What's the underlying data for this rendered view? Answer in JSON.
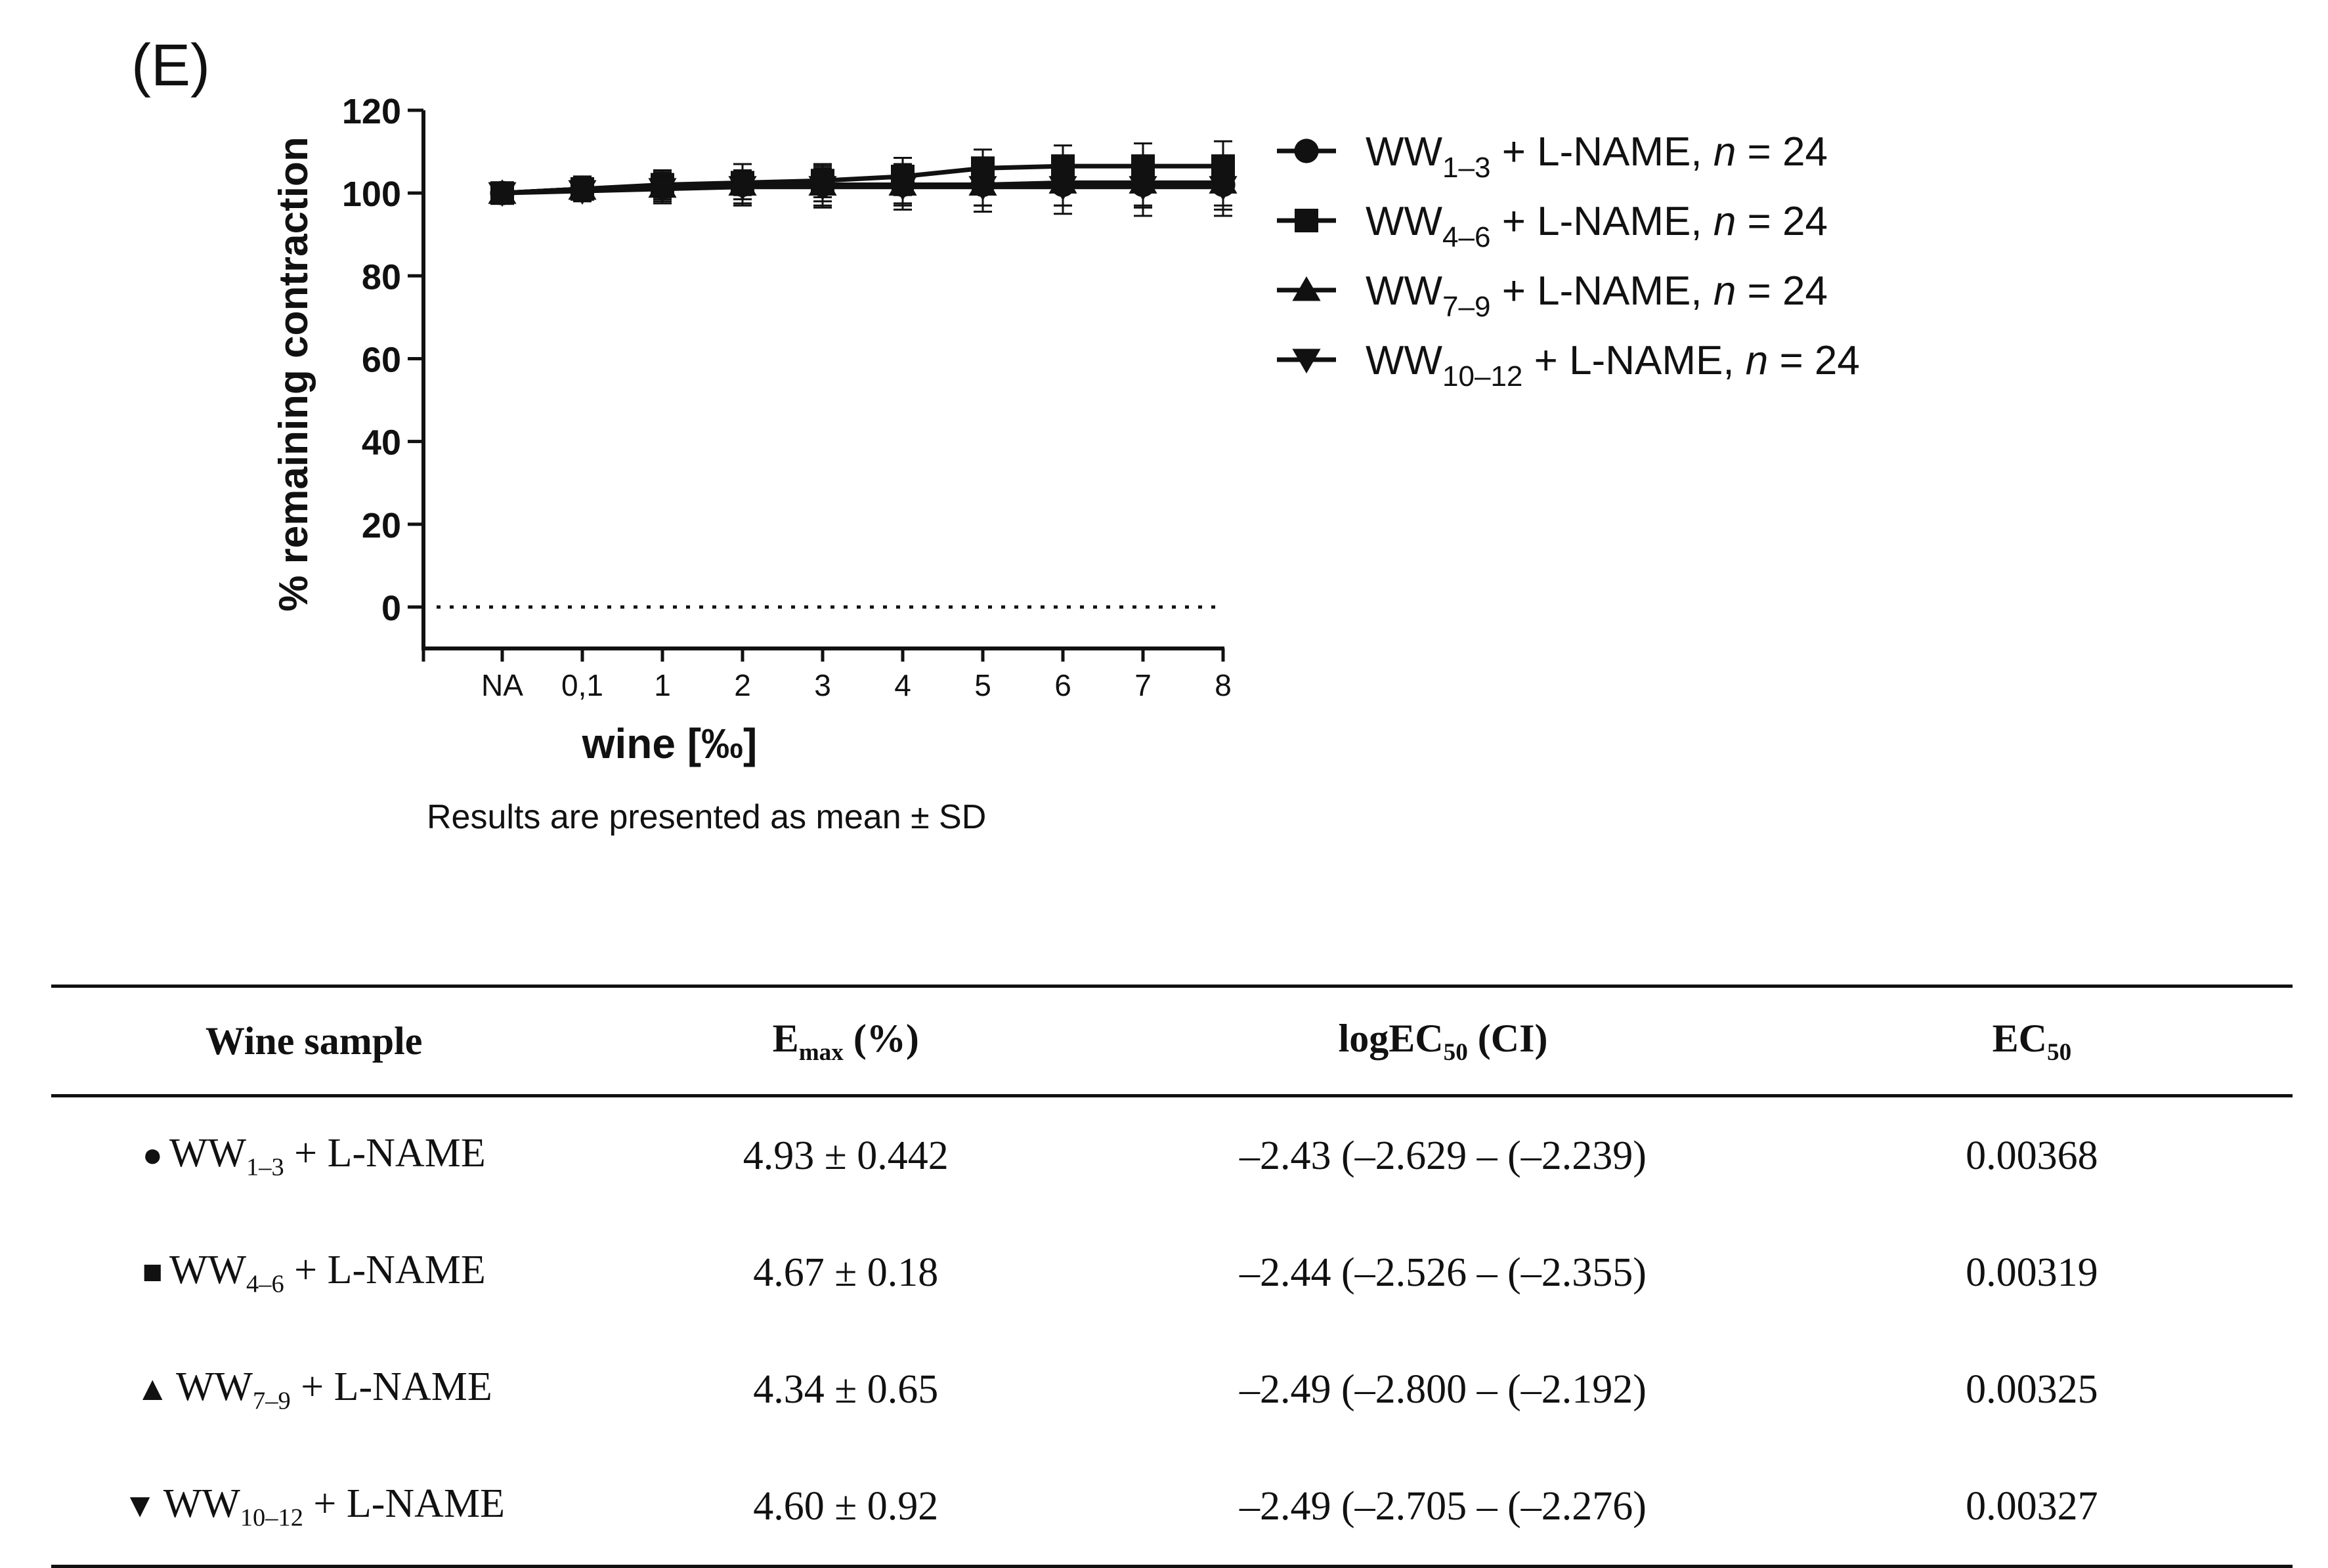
{
  "panel_label": "(E)",
  "note": "Results are presented as mean ± SD",
  "colors": {
    "ink": "#111111",
    "background": "#ffffff"
  },
  "chart_data": {
    "type": "line",
    "xlabel": "wine [‰]",
    "ylabel": "% remaining contraction",
    "categories": [
      "NA",
      "0,1",
      "1",
      "2",
      "3",
      "4",
      "5",
      "6",
      "7",
      "8"
    ],
    "yticks": [
      0,
      20,
      40,
      60,
      80,
      100,
      120
    ],
    "ylim": [
      -10,
      120
    ],
    "reference_line": {
      "y": 0,
      "style": "dotted"
    },
    "legend_position": "right",
    "series": [
      {
        "name": "WW1–3 + L-NAME, n = 24",
        "base": "WW",
        "sub": "1–3",
        "suffix": " + L-NAME, ",
        "n_label": "n",
        "n_value": " = 24",
        "marker": "circle",
        "values": [
          100,
          101,
          101.5,
          102,
          102,
          102,
          102,
          102,
          102,
          102
        ],
        "errors": [
          0,
          3,
          4,
          5,
          5,
          5,
          5,
          5,
          5,
          5
        ]
      },
      {
        "name": "WW4–6 + L-NAME, n = 24",
        "base": "WW",
        "sub": "4–6",
        "suffix": " + L-NAME, ",
        "n_label": "n",
        "n_value": " = 24",
        "marker": "square",
        "values": [
          100,
          101,
          102,
          102.5,
          103,
          104,
          106,
          106.5,
          106.5,
          106.5
        ],
        "errors": [
          0,
          2,
          3,
          3,
          4,
          4.5,
          4.5,
          5,
          5.5,
          6
        ]
      },
      {
        "name": "WW7–9 + L-NAME, n = 24",
        "base": "WW",
        "sub": "7–9",
        "suffix": " + L-NAME, ",
        "n_label": "n",
        "n_value": " = 24",
        "marker": "triangle-up",
        "values": [
          100,
          101,
          101.5,
          102,
          102,
          102,
          102,
          102.5,
          102.5,
          102.5
        ],
        "errors": [
          0,
          2,
          3,
          3.5,
          4,
          4.5,
          5,
          5.5,
          6,
          6.5
        ]
      },
      {
        "name": "WW10–12 + L-NAME, n = 24",
        "base": "WW",
        "sub": "10–12",
        "suffix": " + L-NAME, ",
        "n_label": "n",
        "n_value": " = 24",
        "marker": "triangle-down",
        "values": [
          100,
          100.5,
          101,
          101.5,
          101.5,
          101.5,
          101.5,
          101.5,
          101.5,
          101.5
        ],
        "errors": [
          0,
          2,
          3,
          4,
          5,
          5.5,
          6,
          6.5,
          7,
          7
        ]
      }
    ]
  },
  "table": {
    "headers": {
      "sample": "Wine sample",
      "emax_base": "E",
      "emax_sub": "max",
      "emax_suffix": " (%)",
      "log_base": "logEC",
      "log_sub": "50",
      "log_suffix": " (CI)",
      "ec_base": "EC",
      "ec_sub": "50"
    },
    "rows": [
      {
        "symbol": "●",
        "base": "WW",
        "sub": "1–3",
        "suffix": " + L-NAME",
        "emax": "4.93 ± 0.442",
        "logec50": "–2.43 (–2.629 – (–2.239)",
        "ec50": "0.00368"
      },
      {
        "symbol": "■",
        "base": "WW",
        "sub": "4–6",
        "suffix": " + L-NAME",
        "emax": "4.67 ± 0.18",
        "logec50": "–2.44 (–2.526 – (–2.355)",
        "ec50": "0.00319"
      },
      {
        "symbol": "▲",
        "base": "WW",
        "sub": "7–9",
        "suffix": " + L-NAME",
        "emax": "4.34 ± 0.65",
        "logec50": "–2.49 (–2.800 – (–2.192)",
        "ec50": "0.00325"
      },
      {
        "symbol": "▼",
        "base": "WW",
        "sub": "10–12",
        "suffix": " + L-NAME",
        "emax": "4.60 ± 0.92",
        "logec50": "–2.49 (–2.705 – (–2.276)",
        "ec50": "0.00327"
      }
    ]
  }
}
